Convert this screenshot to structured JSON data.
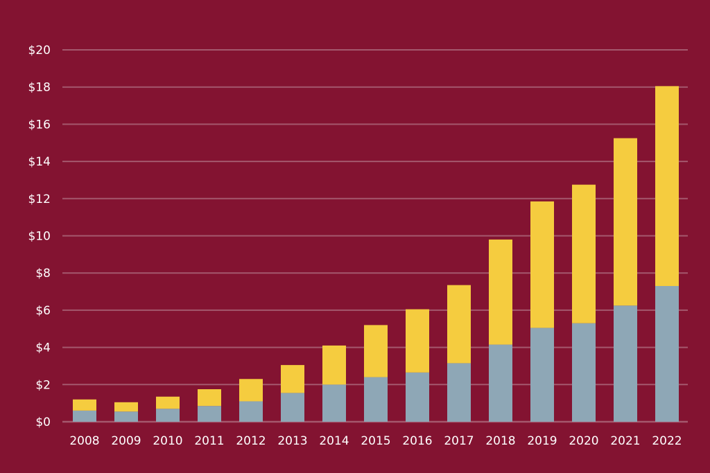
{
  "chart_data": {
    "type": "bar",
    "stacked": true,
    "title": "",
    "xlabel": "",
    "ylabel": "",
    "categories": [
      "2008",
      "2009",
      "2010",
      "2011",
      "2012",
      "2013",
      "2014",
      "2015",
      "2016",
      "2017",
      "2018",
      "2019",
      "2020",
      "2021",
      "2022"
    ],
    "series": [
      {
        "values": [
          0.6,
          0.55,
          0.7,
          0.85,
          1.1,
          1.55,
          2.0,
          2.4,
          2.65,
          3.15,
          4.15,
          5.05,
          5.3,
          6.25,
          7.3
        ]
      },
      {
        "values": [
          0.6,
          0.5,
          0.65,
          0.9,
          1.2,
          1.5,
          2.1,
          2.8,
          3.4,
          4.2,
          5.65,
          6.8,
          7.45,
          9.0,
          10.75
        ]
      }
    ],
    "ylim": [
      0,
      20
    ],
    "yticks": [
      0,
      2,
      4,
      6,
      8,
      10,
      12,
      14,
      16,
      18,
      20
    ],
    "ytick_labels": [
      "$0",
      "$2",
      "$4",
      "$6",
      "$8",
      "$10",
      "$12",
      "$14",
      "$16",
      "$18",
      "$20"
    ],
    "grid": true,
    "legend": "none",
    "colors": {
      "background": "#831331",
      "bottom_series": "#8ea7b6",
      "top_series": "#f5cc3f",
      "gridline": "#a4586d",
      "text": "#ffffff"
    }
  }
}
